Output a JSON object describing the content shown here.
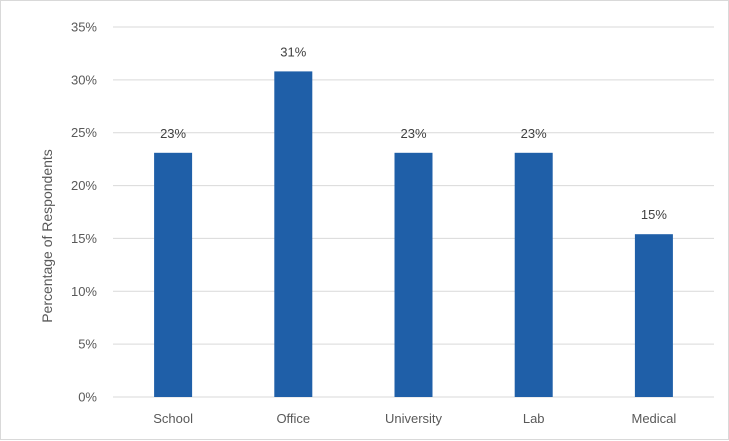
{
  "chart_data": {
    "type": "bar",
    "title": "",
    "xlabel": "",
    "ylabel": "Percentage of Respondents",
    "categories": [
      "School",
      "Office",
      "University",
      "Lab",
      "Medical"
    ],
    "values": [
      23.1,
      30.8,
      23.1,
      23.1,
      15.4
    ],
    "data_labels": [
      "23%",
      "31%",
      "23%",
      "23%",
      "15%"
    ],
    "ylim": [
      0,
      35
    ],
    "yticks": [
      0,
      5,
      10,
      15,
      20,
      25,
      30,
      35
    ],
    "ytick_labels": [
      "0%",
      "5%",
      "10%",
      "15%",
      "20%",
      "25%",
      "30%",
      "35%"
    ],
    "bar_color": "#1f5fa8",
    "gridline_color": "#d9d9d9",
    "grid": true,
    "legend": "none"
  }
}
